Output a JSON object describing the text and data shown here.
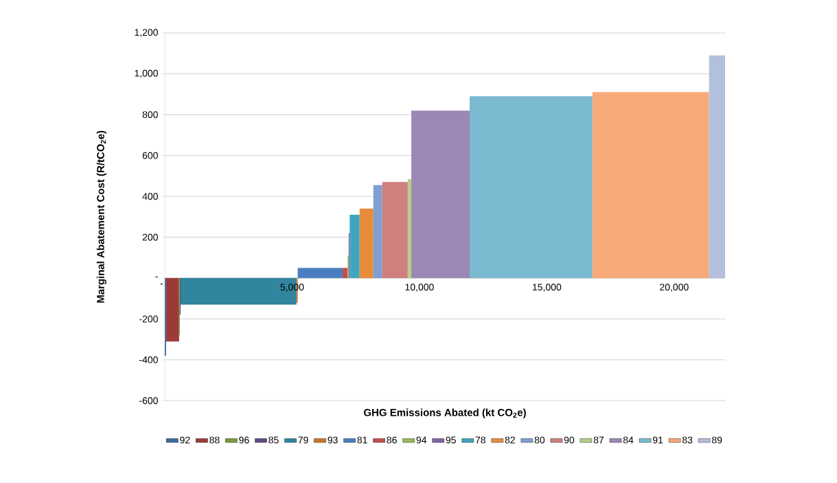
{
  "chart_data": {
    "type": "area",
    "xlabel": "GHG Emissions Abated (kt CO$_{2}$e)",
    "ylabel": "Marginal Abatement Cost (R/tCO$_{2}$e)",
    "xlim": [
      0,
      22000
    ],
    "ylim": [
      -600,
      1200
    ],
    "xticks": [
      {
        "value": 0,
        "label": "-"
      },
      {
        "value": 5000,
        "label": "5,000"
      },
      {
        "value": 10000,
        "label": "10,000"
      },
      {
        "value": 15000,
        "label": "15,000"
      },
      {
        "value": 20000,
        "label": "20,000"
      }
    ],
    "yticks": [
      {
        "value": -600,
        "label": "-600"
      },
      {
        "value": -400,
        "label": "-400"
      },
      {
        "value": -200,
        "label": "-200"
      },
      {
        "value": 0,
        "label": "-"
      },
      {
        "value": 200,
        "label": "200"
      },
      {
        "value": 400,
        "label": "400"
      },
      {
        "value": 600,
        "label": "600"
      },
      {
        "value": 800,
        "label": "800"
      },
      {
        "value": 1000,
        "label": "1,000"
      },
      {
        "value": 1200,
        "label": "1,200"
      }
    ],
    "grid": "y",
    "legend": "bottom",
    "series": [
      {
        "name": "92",
        "color": "#3c6aa0",
        "x": [
          0,
          50
        ],
        "values": [
          -380,
          -380
        ]
      },
      {
        "name": "88",
        "color": "#9b3b38",
        "x": [
          50,
          560
        ],
        "values": [
          -310,
          -310
        ]
      },
      {
        "name": "96",
        "color": "#7a9a3a",
        "x": [
          560,
          590
        ],
        "values": [
          -280,
          -280
        ]
      },
      {
        "name": "85",
        "color": "#5f4a82",
        "x": [
          590,
          620
        ],
        "values": [
          -180,
          -180
        ]
      },
      {
        "name": "79",
        "color": "#31859c",
        "x": [
          620,
          5170
        ],
        "values": [
          -130,
          -130
        ]
      },
      {
        "name": "93",
        "color": "#c9772c",
        "x": [
          5170,
          5220
        ],
        "values": [
          -120,
          -120
        ]
      },
      {
        "name": "81",
        "color": "#4a7ec0",
        "x": [
          5220,
          6980
        ],
        "values": [
          50,
          50
        ]
      },
      {
        "name": "86",
        "color": "#c0504d",
        "x": [
          6980,
          7180
        ],
        "values": [
          50,
          50
        ]
      },
      {
        "name": "94",
        "color": "#9bbb59",
        "x": [
          7180,
          7220
        ],
        "values": [
          110,
          110
        ]
      },
      {
        "name": "95",
        "color": "#8064a2",
        "x": [
          7220,
          7260
        ],
        "values": [
          220,
          220
        ]
      },
      {
        "name": "78",
        "color": "#3fa6bd",
        "x": [
          7260,
          7650
        ],
        "values": [
          310,
          310
        ]
      },
      {
        "name": "82",
        "color": "#e88c3c",
        "x": [
          7650,
          8190
        ],
        "values": [
          340,
          340
        ]
      },
      {
        "name": "80",
        "color": "#7f9fd0",
        "x": [
          8190,
          8540
        ],
        "values": [
          455,
          455
        ]
      },
      {
        "name": "90",
        "color": "#cf7f7e",
        "x": [
          8540,
          9540
        ],
        "values": [
          470,
          470
        ]
      },
      {
        "name": "87",
        "color": "#b3cf8a",
        "x": [
          9540,
          9680
        ],
        "values": [
          485,
          485
        ]
      },
      {
        "name": "84",
        "color": "#9c88b4",
        "x": [
          9680,
          11970
        ],
        "values": [
          820,
          820
        ]
      },
      {
        "name": "91",
        "color": "#7ab9cf",
        "x": [
          11970,
          16790
        ],
        "values": [
          890,
          890
        ]
      },
      {
        "name": "83",
        "color": "#f7a978",
        "x": [
          16790,
          21370
        ],
        "values": [
          910,
          910
        ]
      },
      {
        "name": "89",
        "color": "#b3c0dc",
        "x": [
          21370,
          22000
        ],
        "values": [
          1090,
          1090
        ]
      }
    ]
  }
}
